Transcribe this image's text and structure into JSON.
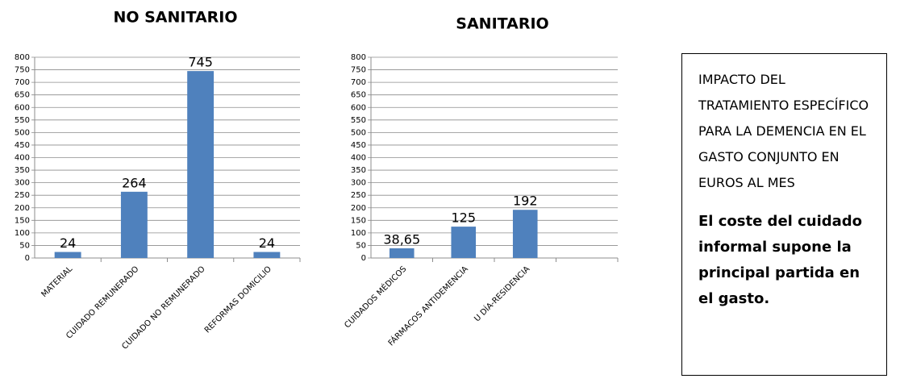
{
  "chart_data": [
    {
      "type": "bar",
      "title": "NO SANITARIO",
      "categories": [
        "MATERIAL",
        "CUIDADO REMUNERADO",
        "CUIDADO NO REMUNERADO",
        "REFORMAS DOMICILIO"
      ],
      "values": [
        24,
        264,
        745,
        24
      ],
      "color": "#4f81bd",
      "ylim": [
        0,
        800
      ],
      "yticks": [
        0,
        50,
        100,
        150,
        200,
        250,
        300,
        350,
        400,
        450,
        500,
        550,
        600,
        650,
        700,
        750,
        800
      ],
      "grid": true
    },
    {
      "type": "bar",
      "title": "SANITARIO",
      "categories": [
        "CUIDADOS MÉDICOS",
        "FÁRMACOS ANTIDEMENCIA",
        "U DÍA-RESIDENCIA",
        null
      ],
      "values": [
        38.65,
        125,
        192,
        null
      ],
      "value_labels": [
        "38,65",
        null,
        null,
        null
      ],
      "color": "#4f81bd",
      "ylim": [
        0,
        800
      ],
      "yticks": [
        0,
        50,
        100,
        150,
        200,
        250,
        300,
        350,
        400,
        450,
        500,
        550,
        600,
        650,
        700,
        750,
        800
      ],
      "grid": true
    }
  ],
  "text_box": {
    "heading": "IMPACTO DEL TRATAMIENTO ESPECÍFICO PARA LA DEMENCIA EN EL GASTO CONJUNTO EN EUROS AL MES",
    "conclusion": "El coste del cuidado informal supone la principal partida en el gasto."
  }
}
